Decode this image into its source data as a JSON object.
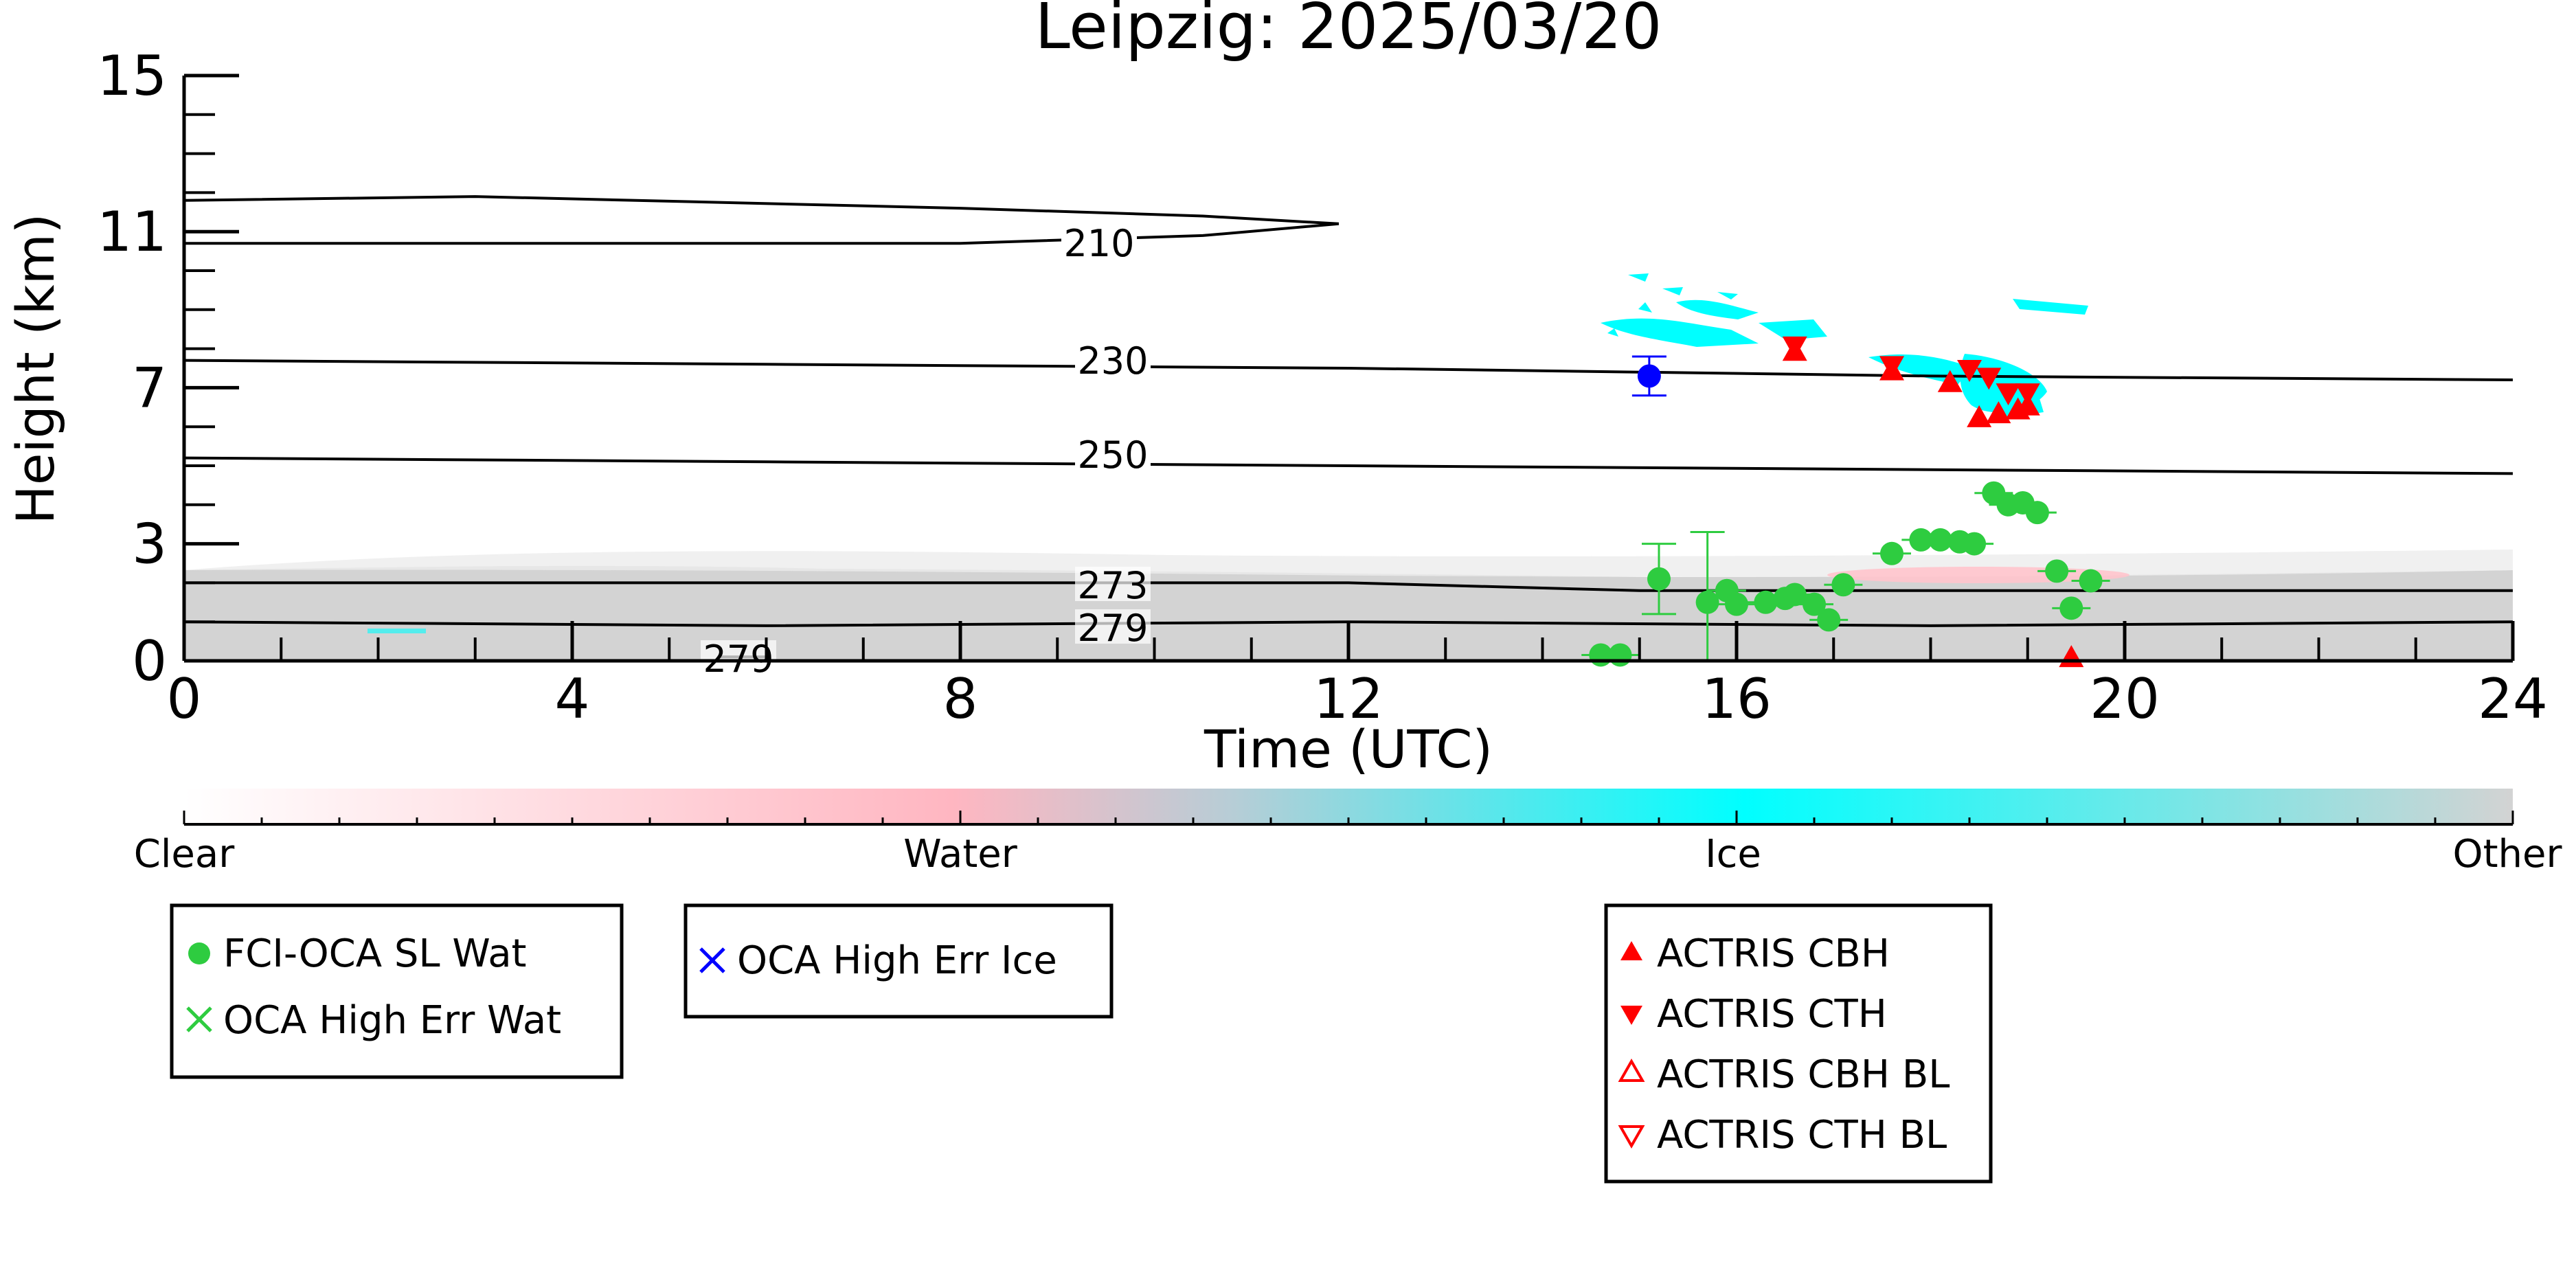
{
  "chart_data": {
    "type": "scatter",
    "title": "Leipzig: 2025/03/20",
    "xlabel": "Time (UTC)",
    "ylabel": "Height (km)",
    "xlim": [
      0,
      24
    ],
    "ylim": [
      0,
      15
    ],
    "x_ticks": [
      0,
      4,
      8,
      12,
      16,
      20,
      24
    ],
    "y_ticks": [
      0,
      3,
      7,
      11,
      15
    ],
    "grid": false,
    "colorbar": {
      "labels": [
        "Clear",
        "Water",
        "Ice",
        "Other"
      ],
      "colors": [
        "#ffffff",
        "#ffb6c1",
        "#00ffff",
        "#d3d3d3"
      ]
    },
    "temperature_contours": [
      {
        "label": "210",
        "points": [
          [
            0,
            11.8
          ],
          [
            3,
            11.9
          ],
          [
            8,
            11.6
          ],
          [
            10.5,
            11.4
          ],
          [
            11.9,
            11.2
          ],
          [
            10.5,
            10.9
          ],
          [
            8,
            10.7
          ],
          [
            3,
            10.7
          ],
          [
            0,
            10.7
          ]
        ]
      },
      {
        "label": "230",
        "points": [
          [
            0,
            7.7
          ],
          [
            6,
            7.6
          ],
          [
            12,
            7.5
          ],
          [
            18,
            7.3
          ],
          [
            24,
            7.2
          ]
        ]
      },
      {
        "label": "250",
        "points": [
          [
            0,
            5.2
          ],
          [
            6,
            5.1
          ],
          [
            12,
            5.0
          ],
          [
            18,
            4.9
          ],
          [
            24,
            4.8
          ]
        ]
      },
      {
        "label": "273",
        "points": [
          [
            0,
            2.0
          ],
          [
            6,
            2.0
          ],
          [
            12,
            2.0
          ],
          [
            15,
            1.8
          ],
          [
            20,
            1.8
          ],
          [
            24,
            1.8
          ]
        ]
      },
      {
        "label": "279",
        "points": [
          [
            0,
            1.0
          ],
          [
            6,
            0.9
          ],
          [
            12,
            1.0
          ],
          [
            18,
            0.9
          ],
          [
            24,
            1.0
          ]
        ]
      },
      {
        "label": "279",
        "points": [
          [
            5.5,
            0.1
          ],
          [
            6.0,
            0.1
          ]
        ]
      }
    ],
    "series": [
      {
        "name": "FCI-OCA SL Wat",
        "color": "#2ecc40",
        "marker": "circle",
        "points": [
          {
            "x": 14.6,
            "y": 0.15
          },
          {
            "x": 14.8,
            "y": 0.15
          },
          {
            "x": 15.2,
            "y": 2.1,
            "err": 0.9
          },
          {
            "x": 15.7,
            "y": 1.5,
            "err": 1.8
          },
          {
            "x": 15.9,
            "y": 1.8
          },
          {
            "x": 16.0,
            "y": 1.45
          },
          {
            "x": 16.3,
            "y": 1.5
          },
          {
            "x": 16.5,
            "y": 1.6
          },
          {
            "x": 16.6,
            "y": 1.7
          },
          {
            "x": 16.8,
            "y": 1.45
          },
          {
            "x": 16.95,
            "y": 1.05
          },
          {
            "x": 17.1,
            "y": 1.95
          },
          {
            "x": 17.6,
            "y": 2.75
          },
          {
            "x": 17.9,
            "y": 3.1
          },
          {
            "x": 18.1,
            "y": 3.1
          },
          {
            "x": 18.3,
            "y": 3.05
          },
          {
            "x": 18.45,
            "y": 3.0
          },
          {
            "x": 18.65,
            "y": 4.3
          },
          {
            "x": 18.8,
            "y": 4.0
          },
          {
            "x": 18.95,
            "y": 4.05
          },
          {
            "x": 19.1,
            "y": 3.8
          },
          {
            "x": 19.3,
            "y": 2.3
          },
          {
            "x": 19.45,
            "y": 1.35
          },
          {
            "x": 19.65,
            "y": 2.05
          }
        ]
      },
      {
        "name": "OCA High Err Wat",
        "color": "#2ecc40",
        "marker": "x",
        "points": []
      },
      {
        "name": "OCA High Err Ice",
        "color": "#0000ff",
        "marker": "x",
        "points": [
          {
            "x": 15.1,
            "y": 7.3,
            "err": 0.5,
            "shape": "circle"
          }
        ]
      },
      {
        "name": "ACTRIS CBH",
        "color": "#ff0000",
        "marker": "triangle-up",
        "points": [
          {
            "x": 16.6,
            "y": 7.9
          },
          {
            "x": 17.6,
            "y": 7.4
          },
          {
            "x": 18.2,
            "y": 7.1
          },
          {
            "x": 18.5,
            "y": 6.2
          },
          {
            "x": 18.7,
            "y": 6.3
          },
          {
            "x": 18.9,
            "y": 6.4
          },
          {
            "x": 19.0,
            "y": 6.5
          },
          {
            "x": 19.45,
            "y": 0.05
          }
        ]
      },
      {
        "name": "ACTRIS CTH",
        "color": "#ff0000",
        "marker": "triangle-down",
        "points": [
          {
            "x": 16.6,
            "y": 8.1
          },
          {
            "x": 17.6,
            "y": 7.6
          },
          {
            "x": 18.4,
            "y": 7.5
          },
          {
            "x": 18.6,
            "y": 7.3
          },
          {
            "x": 18.8,
            "y": 6.9
          },
          {
            "x": 19.0,
            "y": 6.9
          }
        ]
      },
      {
        "name": "ACTRIS CBH BL",
        "color": "#ff0000",
        "marker": "triangle-up-open",
        "points": []
      },
      {
        "name": "ACTRIS CTH BL",
        "color": "#ff0000",
        "marker": "triangle-down-open",
        "points": []
      }
    ]
  }
}
